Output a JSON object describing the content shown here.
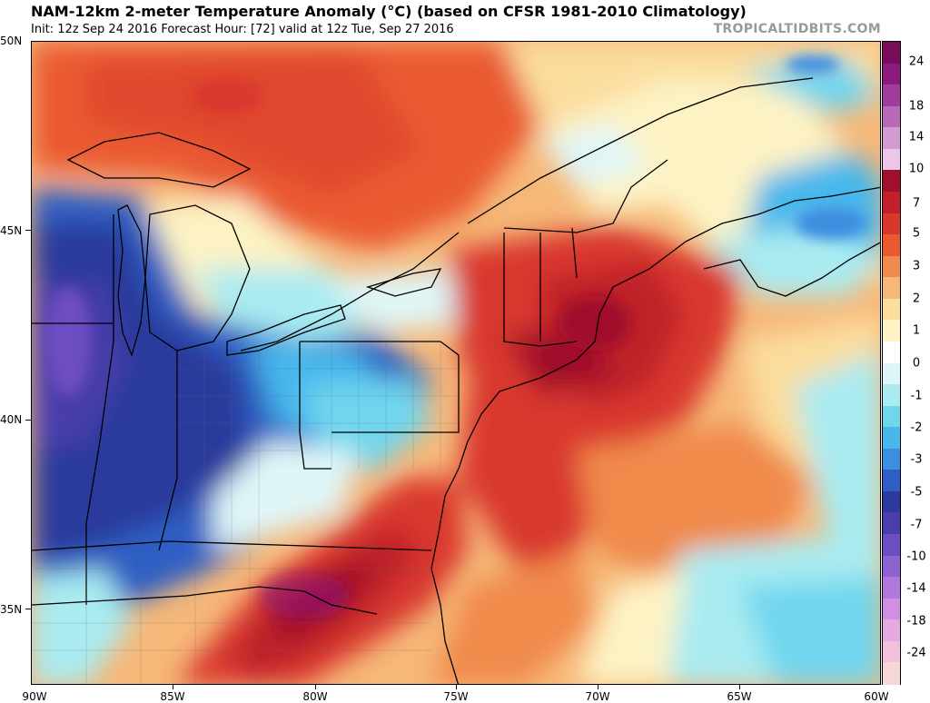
{
  "header": {
    "title": "NAM-12km 2-meter Temperature Anomaly (°C) (based on CFSR 1981-2010 Climatology)",
    "subtitle": "Init: 12z Sep 24 2016   Forecast Hour: [72]   valid at 12z Tue, Sep 27 2016",
    "brand": "TROPICALTIDBITS.COM"
  },
  "map": {
    "region": "Northeastern United States and Atlantic Canada",
    "lat_labels": [
      "50N",
      "45N",
      "40N",
      "35N"
    ],
    "lon_labels": [
      "90W",
      "85W",
      "80W",
      "75W",
      "70W",
      "65W",
      "60W"
    ],
    "features": {
      "cold_anomaly_center": "Illinois / Indiana / Ohio Valley",
      "warm_anomaly_centers": [
        "Carolinas / Virginia",
        "Southern New England",
        "Lake Superior"
      ]
    }
  },
  "colorbar": {
    "labels": [
      "24",
      "18",
      "14",
      "10",
      "7",
      "5",
      "3",
      "2",
      "1",
      "0",
      "-1",
      "-2",
      "-3",
      "-5",
      "-7",
      "-10",
      "-14",
      "-18",
      "-24"
    ],
    "colors": [
      "#7a0a5a",
      "#8b1a7c",
      "#a13c9b",
      "#b86ab7",
      "#d49ad2",
      "#ecc5ea",
      "#a0102a",
      "#c0202c",
      "#d9372e",
      "#ea5a30",
      "#f08a4c",
      "#f6b878",
      "#fbdd9e",
      "#fdf3c4",
      "#ffffff",
      "#dff6f8",
      "#a9ebf1",
      "#6fd6ee",
      "#46b8ec",
      "#3c8ee0",
      "#2f5fc4",
      "#2b3a9c",
      "#4a3dac",
      "#6d4ec2",
      "#8f62d2",
      "#b178dc",
      "#d08fe0",
      "#e6a9e0",
      "#f2c0dc",
      "#f7d6d8"
    ]
  }
}
